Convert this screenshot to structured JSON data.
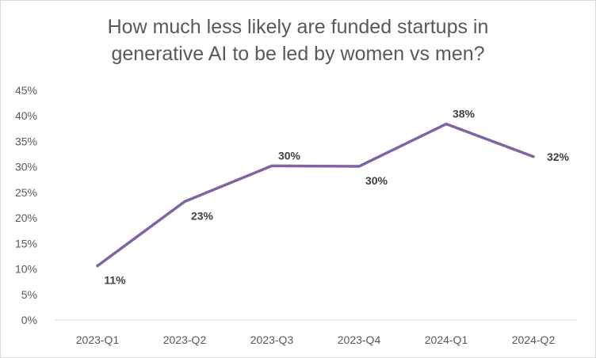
{
  "chart_data": {
    "type": "line",
    "title_lines": [
      "How much less likely are funded startups in",
      "generative AI to be led by women vs men?"
    ],
    "xlabel": "",
    "ylabel": "",
    "categories": [
      "2023-Q1",
      "2023-Q2",
      "2023-Q3",
      "2023-Q4",
      "2024-Q1",
      "2024-Q2"
    ],
    "series": [
      {
        "values": [
          10.6,
          23.2,
          30.2,
          30.1,
          38.4,
          32.0
        ],
        "data_labels": [
          "11%",
          "23%",
          "30%",
          "30%",
          "38%",
          "32%"
        ],
        "color": "#8064a2"
      }
    ],
    "ylim": [
      0,
      45
    ],
    "yticks": [
      {
        "value": 0,
        "label": "0%"
      },
      {
        "value": 5,
        "label": "5%"
      },
      {
        "value": 10,
        "label": "10%"
      },
      {
        "value": 15,
        "label": "15%"
      },
      {
        "value": 20,
        "label": "20%"
      },
      {
        "value": 25,
        "label": "25%"
      },
      {
        "value": 30,
        "label": "30%"
      },
      {
        "value": 35,
        "label": "35%"
      },
      {
        "value": 40,
        "label": "40%"
      },
      {
        "value": 45,
        "label": "45%"
      }
    ],
    "grid": false,
    "legend": "none",
    "colors": {
      "line": "#8064a2",
      "axis_text": "#595959",
      "data_label": "#404040",
      "axis_line": "#d9d9d9"
    }
  }
}
